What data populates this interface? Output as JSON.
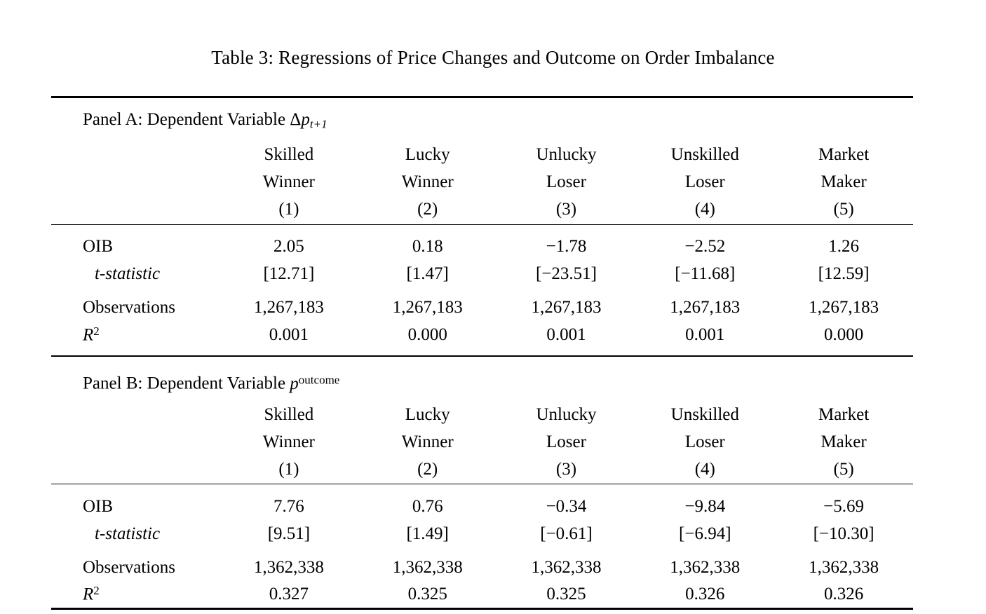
{
  "title": "Table 3: Regressions of Price Changes and Outcome on Order Imbalance",
  "panels": [
    {
      "heading": {
        "prefix": "Panel A: Dependent Variable ",
        "delta": "Δ",
        "var": "p",
        "sub": "t+1"
      },
      "columns": [
        {
          "l1": "Skilled",
          "l2": "Winner",
          "num": "(1)"
        },
        {
          "l1": "Lucky",
          "l2": "Winner",
          "num": "(2)"
        },
        {
          "l1": "Unlucky",
          "l2": "Loser",
          "num": "(3)"
        },
        {
          "l1": "Unskilled",
          "l2": "Loser",
          "num": "(4)"
        },
        {
          "l1": "Market",
          "l2": "Maker",
          "num": "(5)"
        }
      ],
      "oib": {
        "label": "OIB",
        "values": [
          "2.05",
          "0.18",
          "−1.78",
          "−2.52",
          "1.26"
        ]
      },
      "tstat": {
        "label": "t-statistic",
        "values": [
          "[12.71]",
          "[1.47]",
          "[−23.51]",
          "[−11.68]",
          "[12.59]"
        ]
      },
      "obs": {
        "label": "Observations",
        "values": [
          "1,267,183",
          "1,267,183",
          "1,267,183",
          "1,267,183",
          "1,267,183"
        ]
      },
      "r2": {
        "base": "R",
        "sup": "2",
        "values": [
          "0.001",
          "0.000",
          "0.001",
          "0.001",
          "0.000"
        ]
      }
    },
    {
      "heading": {
        "prefix": "Panel B: Dependent Variable ",
        "var": "p",
        "sup": "outcome"
      },
      "columns": [
        {
          "l1": "Skilled",
          "l2": "Winner",
          "num": "(1)"
        },
        {
          "l1": "Lucky",
          "l2": "Winner",
          "num": "(2)"
        },
        {
          "l1": "Unlucky",
          "l2": "Loser",
          "num": "(3)"
        },
        {
          "l1": "Unskilled",
          "l2": "Loser",
          "num": "(4)"
        },
        {
          "l1": "Market",
          "l2": "Maker",
          "num": "(5)"
        }
      ],
      "oib": {
        "label": "OIB",
        "values": [
          "7.76",
          "0.76",
          "−0.34",
          "−9.84",
          "−5.69"
        ]
      },
      "tstat": {
        "label": "t-statistic",
        "values": [
          "[9.51]",
          "[1.49]",
          "[−0.61]",
          "[−6.94]",
          "[−10.30]"
        ]
      },
      "obs": {
        "label": "Observations",
        "values": [
          "1,362,338",
          "1,362,338",
          "1,362,338",
          "1,362,338",
          "1,362,338"
        ]
      },
      "r2": {
        "base": "R",
        "sup": "2",
        "values": [
          "0.327",
          "0.325",
          "0.325",
          "0.326",
          "0.326"
        ]
      }
    }
  ]
}
